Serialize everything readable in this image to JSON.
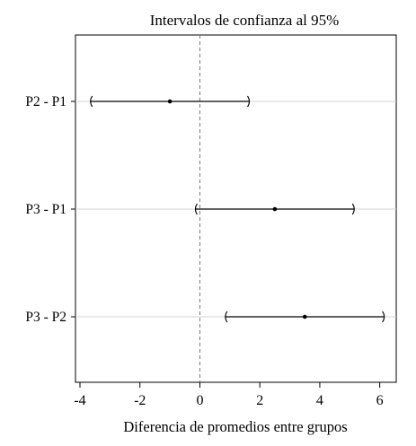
{
  "chart_data": {
    "type": "errorbar",
    "title": "Intervalos de confianza al 95%",
    "xlabel": "Diferencia de promedios entre grupos",
    "ylabel": "",
    "xlim": [
      -4.15,
      6.55
    ],
    "xticks": [
      -4,
      -2,
      0,
      2,
      4,
      6
    ],
    "xtick_labels": [
      "-4",
      "-2",
      "0",
      "2",
      "4",
      "6"
    ],
    "reference_line_x": 0,
    "grid": "horizontal lines at each comparison",
    "categories": [
      "P2 - P1",
      "P3 - P1",
      "P3 - P2"
    ],
    "estimates": [
      -1.0,
      2.5,
      3.5
    ],
    "lower": [
      -3.65,
      -0.15,
      0.85
    ],
    "upper": [
      1.65,
      5.15,
      6.15
    ],
    "colors": {
      "interval": "#000000",
      "grid": "#d4d4d4",
      "reference": "#777777",
      "frame": "#000000"
    }
  }
}
